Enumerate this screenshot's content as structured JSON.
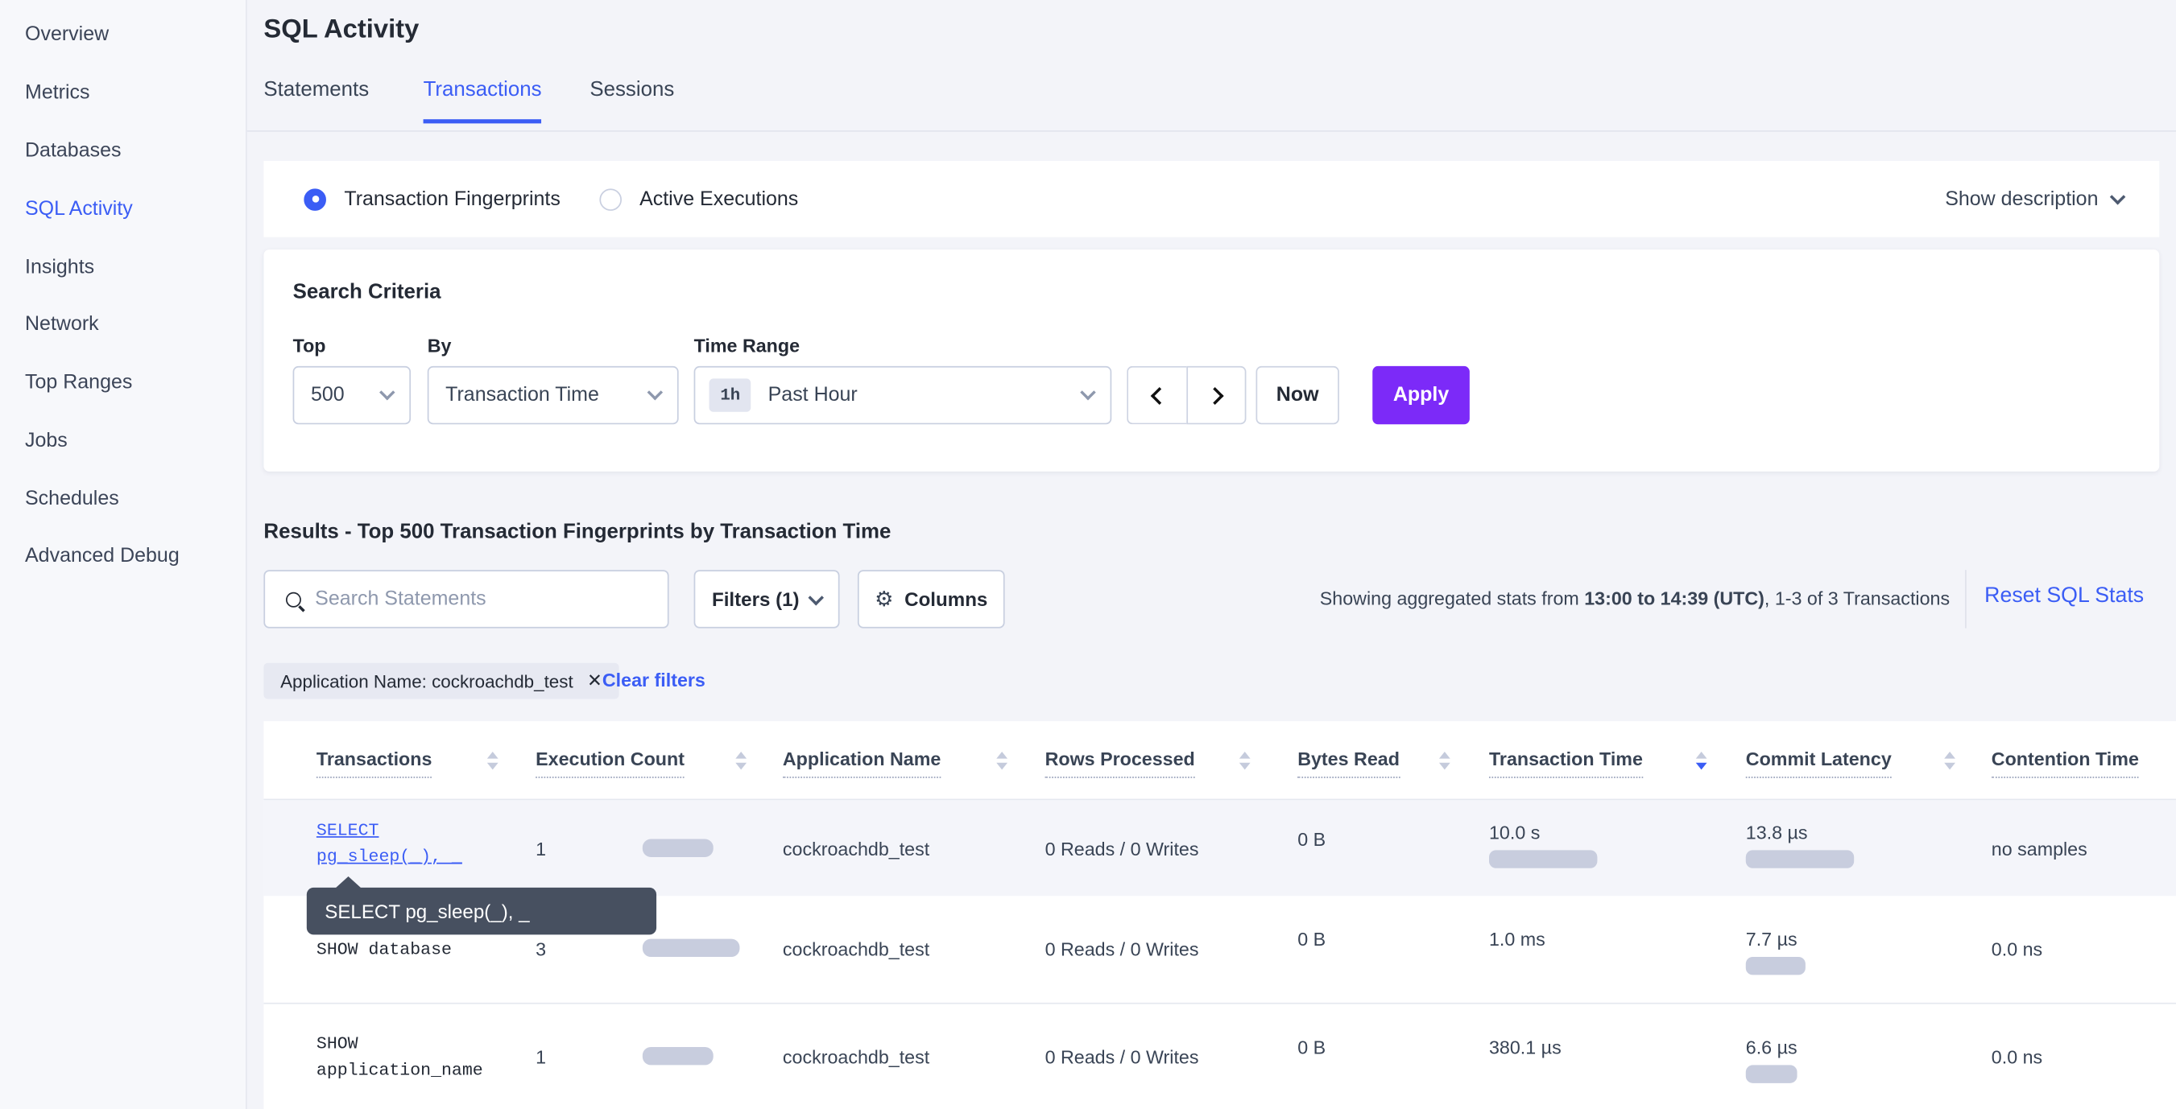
{
  "colors": {
    "accent_blue": "#3b5df5",
    "apply_purple": "#7c2af8",
    "bar_fill": "#c8cdde",
    "tooltip_bg": "#475060",
    "page_bg": "#f3f4f9",
    "text_dark": "#242a35"
  },
  "sidebar": {
    "items": [
      {
        "label": "Overview"
      },
      {
        "label": "Metrics"
      },
      {
        "label": "Databases"
      },
      {
        "label": "SQL Activity",
        "active": true
      },
      {
        "label": "Insights"
      },
      {
        "label": "Network"
      },
      {
        "label": "Top Ranges"
      },
      {
        "label": "Jobs"
      },
      {
        "label": "Schedules"
      },
      {
        "label": "Advanced Debug"
      }
    ]
  },
  "header": {
    "title": "SQL Activity",
    "tabs": [
      {
        "label": "Statements"
      },
      {
        "label": "Transactions",
        "active": true
      },
      {
        "label": "Sessions"
      }
    ]
  },
  "view_toggle": {
    "fingerprints_label": "Transaction Fingerprints",
    "active_executions_label": "Active Executions",
    "show_description_label": "Show description"
  },
  "search_criteria": {
    "heading": "Search Criteria",
    "top_label": "Top",
    "top_value": "500",
    "by_label": "By",
    "by_value": "Transaction Time",
    "time_range_label": "Time Range",
    "time_range_badge": "1h",
    "time_range_value": "Past Hour",
    "now_label": "Now",
    "apply_label": "Apply"
  },
  "results": {
    "heading": "Results - Top 500 Transaction Fingerprints by Transaction Time",
    "search_placeholder": "Search Statements",
    "filters_label": "Filters (1)",
    "columns_label": "Columns",
    "stats_prefix": "Showing aggregated stats from ",
    "stats_bold": "13:00 to 14:39 (UTC)",
    "stats_suffix": ", 1-3 of 3 Transactions",
    "reset_label": "Reset SQL Stats",
    "applied_filter": "Application Name: cockroachdb_test",
    "clear_filters_label": "Clear filters"
  },
  "tooltip": {
    "text": "SELECT pg_sleep(_), _"
  },
  "table": {
    "columns": [
      {
        "label": "Transactions",
        "sort": "none"
      },
      {
        "label": "Execution Count",
        "sort": "none"
      },
      {
        "label": "Application Name",
        "sort": "none"
      },
      {
        "label": "Rows Processed",
        "sort": "none"
      },
      {
        "label": "Bytes Read",
        "sort": "none"
      },
      {
        "label": "Transaction Time",
        "sort": "desc"
      },
      {
        "label": "Commit Latency",
        "sort": "none"
      },
      {
        "label": "Contention Time",
        "sort": "none"
      }
    ],
    "rows": [
      {
        "transaction": "SELECT pg_sleep(_), _",
        "execution_count": "1",
        "exec_bar": 51,
        "application_name": "cockroachdb_test",
        "rows_processed": "0 Reads / 0 Writes",
        "bytes_read": "0 B",
        "transaction_time": "10.0 s",
        "txn_bar": 78,
        "commit_latency": "13.8 µs",
        "commit_bar": 78,
        "contention_time": "no samples"
      },
      {
        "transaction": "SHOW database",
        "execution_count": "3",
        "exec_bar": 70,
        "application_name": "cockroachdb_test",
        "rows_processed": "0 Reads / 0 Writes",
        "bytes_read": "0 B",
        "transaction_time": "1.0 ms",
        "txn_bar": 0,
        "commit_latency": "7.7 µs",
        "commit_bar": 43,
        "contention_time": "0.0 ns"
      },
      {
        "transaction": "SHOW application_name",
        "execution_count": "1",
        "exec_bar": 51,
        "application_name": "cockroachdb_test",
        "rows_processed": "0 Reads / 0 Writes",
        "bytes_read": "0 B",
        "transaction_time": "380.1 µs",
        "txn_bar": 0,
        "commit_latency": "6.6 µs",
        "commit_bar": 37,
        "contention_time": "0.0 ns"
      }
    ]
  }
}
